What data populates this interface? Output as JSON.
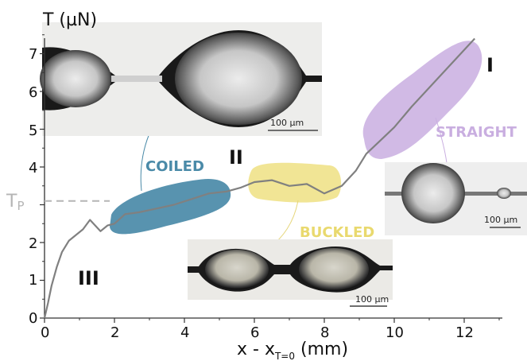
{
  "chart_data": {
    "type": "line",
    "xlabel": "x - x",
    "xlabel_sub": "T=0",
    "xlabel_unit": " (mm)",
    "ylabel": "T (µN)",
    "xlim": [
      0,
      13
    ],
    "ylim": [
      0,
      7.6
    ],
    "x_ticks": [
      0,
      2,
      4,
      6,
      8,
      10,
      12
    ],
    "y_ticks": [
      0,
      1,
      2,
      4,
      5,
      6,
      7
    ],
    "grid": false,
    "threshold": {
      "label": "T",
      "label_sub": "P",
      "value": 3.1
    },
    "series": [
      {
        "color": "#808080",
        "x": [
          0,
          0.1,
          0.2,
          0.35,
          0.5,
          0.7,
          0.9,
          1.1,
          1.3,
          1.45,
          1.6,
          1.8,
          2.0,
          2.3,
          2.7,
          3.2,
          3.7,
          4.2,
          4.7,
          5.2,
          5.6,
          6.0,
          6.5,
          7.0,
          7.5,
          8.0,
          8.5,
          8.9,
          9.2,
          9.6,
          10.0,
          10.5,
          11.0,
          11.5,
          12.0,
          12.3
        ],
        "y": [
          0,
          0.4,
          0.85,
          1.35,
          1.75,
          2.05,
          2.2,
          2.35,
          2.6,
          2.45,
          2.3,
          2.45,
          2.5,
          2.75,
          2.8,
          2.9,
          3.0,
          3.15,
          3.3,
          3.35,
          3.45,
          3.6,
          3.65,
          3.5,
          3.55,
          3.3,
          3.5,
          3.9,
          4.35,
          4.7,
          5.05,
          5.6,
          6.1,
          6.6,
          7.1,
          7.4
        ]
      }
    ],
    "regions": [
      {
        "id": "straight",
        "label": "STRAIGHT",
        "color": "#c9aee0"
      },
      {
        "id": "coiled",
        "label": "COILED",
        "color": "#4a8aa8"
      },
      {
        "id": "buckled",
        "label": "BUCKLED",
        "color": "#efe28a"
      }
    ],
    "regime_labels": [
      "I",
      "II",
      "III"
    ],
    "insets": [
      {
        "id": "top-left",
        "scale_bar": "100 µm"
      },
      {
        "id": "straight",
        "scale_bar": "100 µm"
      },
      {
        "id": "buckled",
        "scale_bar": "100 µm"
      }
    ]
  }
}
